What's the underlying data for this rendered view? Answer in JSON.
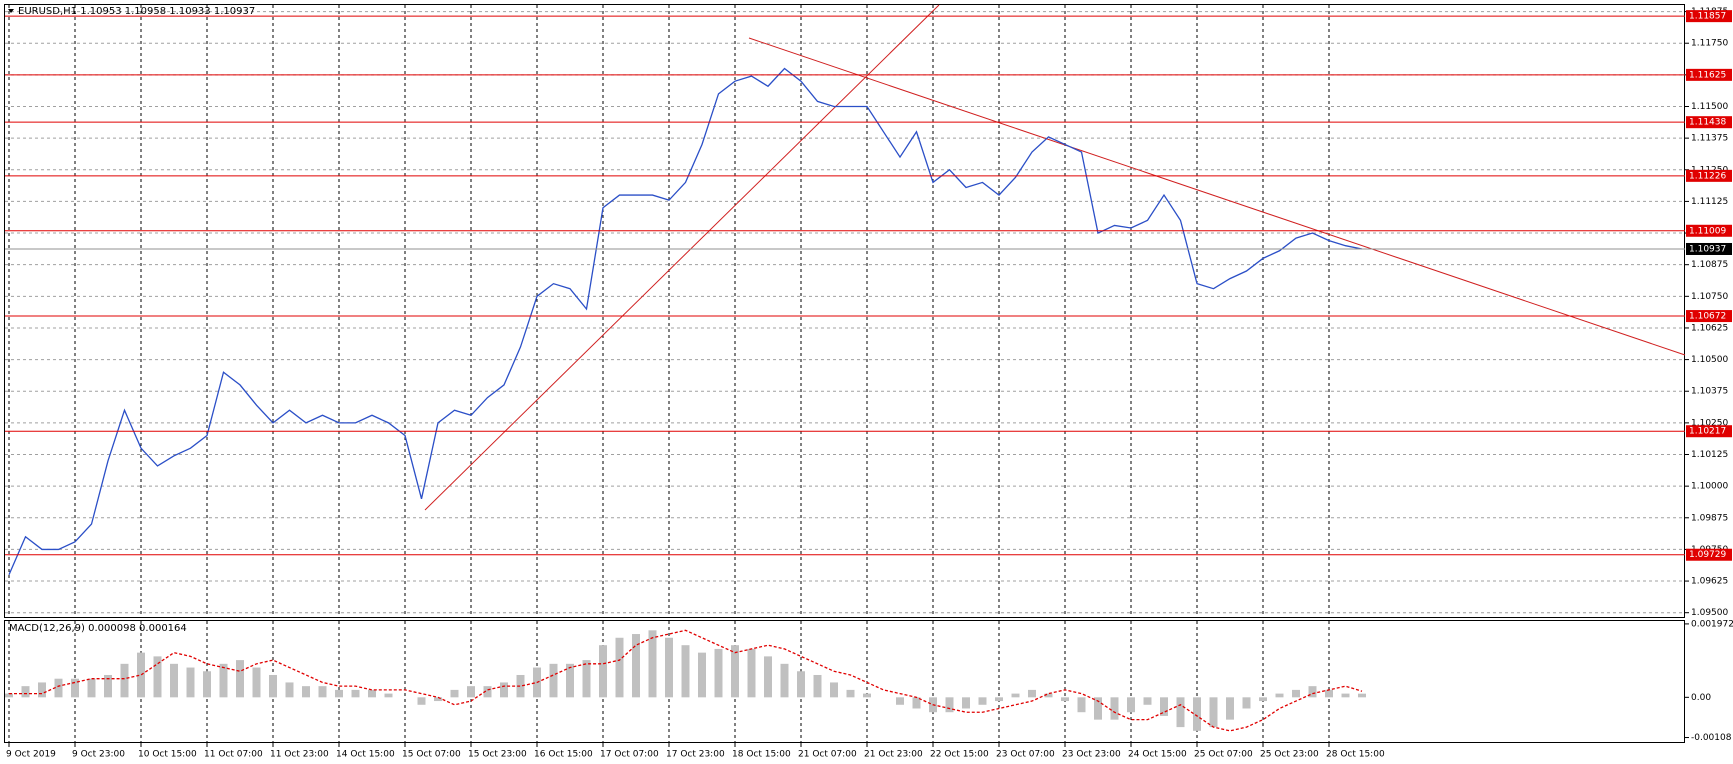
{
  "chart_data": [
    {
      "type": "line",
      "title": "EURUSD,H1",
      "ohlc": [
        1.10953,
        1.10958,
        1.10933,
        1.10937
      ],
      "categories": [
        "9 Oct 2019",
        null,
        null,
        null,
        "9 Oct 23:00",
        null,
        null,
        null,
        "10 Oct 15:00",
        null,
        null,
        null,
        "11 Oct 07:00",
        null,
        null,
        null,
        "11 Oct 23:00",
        null,
        null,
        null,
        "14 Oct 15:00",
        null,
        null,
        null,
        "15 Oct 07:00",
        null,
        null,
        null,
        "15 Oct 23:00",
        null,
        null,
        null,
        "16 Oct 15:00",
        null,
        null,
        null,
        "17 Oct 07:00",
        null,
        null,
        null,
        "17 Oct 23:00",
        null,
        null,
        null,
        "18 Oct 15:00",
        null,
        null,
        null,
        "21 Oct 07:00",
        null,
        null,
        null,
        "21 Oct 23:00",
        null,
        null,
        null,
        "22 Oct 15:00",
        null,
        null,
        null,
        "23 Oct 07:00",
        null,
        null,
        null,
        "23 Oct 23:00",
        null,
        null,
        null,
        "24 Oct 15:00",
        null,
        null,
        null,
        "25 Oct 07:00",
        null,
        null,
        null,
        "25 Oct 23:00",
        null,
        null,
        null,
        "28 Oct 15:00",
        null,
        null
      ],
      "series": [
        {
          "color": "#2b4fc7",
          "values": [
            1.0965,
            1.098,
            1.0975,
            1.0975,
            1.0978,
            1.0985,
            1.101,
            1.103,
            1.1015,
            1.1008,
            1.1012,
            1.1015,
            1.102,
            1.1045,
            1.104,
            1.1032,
            1.1025,
            1.103,
            1.1025,
            1.1028,
            1.1025,
            1.1025,
            1.1028,
            1.1025,
            1.102,
            1.0995,
            1.1025,
            1.103,
            1.1028,
            1.1035,
            1.104,
            1.1055,
            1.1075,
            1.108,
            1.1078,
            1.107,
            1.111,
            1.1115,
            1.1115,
            1.1115,
            1.1113,
            1.112,
            1.1135,
            1.1155,
            1.116,
            1.1162,
            1.1158,
            1.1165,
            1.116,
            1.1152,
            1.115,
            1.115,
            1.115,
            1.114,
            1.113,
            1.114,
            1.112,
            1.1125,
            1.1118,
            1.112,
            1.1115,
            1.1122,
            1.1132,
            1.1138,
            1.1135,
            1.1132,
            1.11,
            1.1103,
            1.1102,
            1.1105,
            1.1115,
            1.1105,
            1.108,
            1.1078,
            1.1082,
            1.1085,
            1.109,
            1.1093,
            1.1098,
            1.11,
            1.1097,
            1.1095,
            1.10937
          ]
        }
      ],
      "ylim": [
        1.09483,
        1.11901
      ],
      "yticks": [
        {
          "value": 1.095,
          "label": "1.09500"
        },
        {
          "value": 1.09625,
          "label": "1.09625"
        },
        {
          "value": 1.0975,
          "label": "1.09750"
        },
        {
          "value": 1.09875,
          "label": "1.09875"
        },
        {
          "value": 1.1,
          "label": "1.10000"
        },
        {
          "value": 1.10125,
          "label": "1.10125"
        },
        {
          "value": 1.1025,
          "label": "1.10250"
        },
        {
          "value": 1.10375,
          "label": "1.10375"
        },
        {
          "value": 1.105,
          "label": "1.10500"
        },
        {
          "value": 1.10625,
          "label": "1.10625"
        },
        {
          "value": 1.1075,
          "label": "1.10750"
        },
        {
          "value": 1.10875,
          "label": "1.10875"
        },
        {
          "value": 1.11,
          "label": "1.11000"
        },
        {
          "value": 1.11125,
          "label": "1.11125"
        },
        {
          "value": 1.1125,
          "label": "1.11250"
        },
        {
          "value": 1.11375,
          "label": "1.11375"
        },
        {
          "value": 1.115,
          "label": "1.11500"
        },
        {
          "value": 1.11625,
          "label": "1.11625"
        },
        {
          "value": 1.1175,
          "label": "1.11750"
        },
        {
          "value": 1.11875,
          "label": "1.11875"
        }
      ],
      "levels": [
        1.11857,
        1.11625,
        1.11438,
        1.11226,
        1.11009,
        1.10672,
        1.10217,
        1.09729
      ],
      "level_color": "#e00000",
      "grid": true
    },
    {
      "type": "bar",
      "title": "MACD(12,26,9)",
      "series": [
        {
          "type": "bar",
          "color": "#c0c0c0",
          "values": [
            0.0001,
            0.0003,
            0.0004,
            0.0005,
            0.0005,
            0.0005,
            0.0006,
            0.0009,
            0.0012,
            0.0011,
            0.0009,
            0.0008,
            0.0007,
            0.0009,
            0.001,
            0.0008,
            0.0006,
            0.0004,
            0.0003,
            0.0003,
            0.0002,
            0.0002,
            0.0002,
            0.0001,
            0,
            -0.0002,
            -0.0001,
            0.0002,
            0.0003,
            0.0003,
            0.0004,
            0.0006,
            0.0008,
            0.0009,
            0.0009,
            0.001,
            0.0014,
            0.0016,
            0.0017,
            0.0018,
            0.0016,
            0.0014,
            0.0012,
            0.0013,
            0.0014,
            0.0013,
            0.0011,
            0.0009,
            0.0007,
            0.0006,
            0.0004,
            0.0002,
            0.0001,
            0,
            -0.0002,
            -0.0003,
            -0.0004,
            -0.0004,
            -0.0003,
            -0.0002,
            -0.0001,
            0.0001,
            0.0002,
            0.0001,
            -0.0001,
            -0.0004,
            -0.0006,
            -0.0006,
            -0.0004,
            -0.0002,
            -0.0005,
            -0.0008,
            -0.0009,
            -0.0008,
            -0.0006,
            -0.0003,
            -0.0001,
            0.0001,
            0.0002,
            0.0003,
            0.0002,
            0.0001,
            9.8e-05
          ]
        },
        {
          "type": "line",
          "color": "#e00000",
          "dashed": true,
          "values": [
            0.0001,
            0.0001,
            0.0001,
            0.0003,
            0.0004,
            0.0005,
            0.0005,
            0.0005,
            0.0006,
            0.0009,
            0.0012,
            0.0011,
            0.0009,
            0.0008,
            0.0007,
            0.0009,
            0.001,
            0.0008,
            0.0006,
            0.0004,
            0.0003,
            0.0003,
            0.0002,
            0.0002,
            0.0002,
            0.0001,
            0,
            -0.0002,
            -0.0001,
            0.0002,
            0.0003,
            0.0003,
            0.0004,
            0.0006,
            0.0008,
            0.0009,
            0.0009,
            0.001,
            0.0014,
            0.0016,
            0.0017,
            0.0018,
            0.0016,
            0.0014,
            0.0012,
            0.0013,
            0.0014,
            0.0013,
            0.0011,
            0.0009,
            0.0007,
            0.0006,
            0.0004,
            0.0002,
            0.0001,
            0,
            -0.0002,
            -0.0003,
            -0.0004,
            -0.0004,
            -0.0003,
            -0.0002,
            -0.0001,
            0.0001,
            0.0002,
            0.0001,
            -0.0001,
            -0.0004,
            -0.0006,
            -0.0006,
            -0.0004,
            -0.0002,
            -0.0005,
            -0.0008,
            -0.0009,
            -0.0008,
            -0.0006,
            -0.0003,
            -0.0001,
            0.0001,
            0.0002,
            0.0003,
            0.000164
          ]
        }
      ],
      "ylim": [
        -0.0012,
        0.00205
      ],
      "yticks": [
        0.001972,
        {
          "value": 0,
          "label": "0.00"
        },
        -0.00108
      ]
    }
  ]
}
